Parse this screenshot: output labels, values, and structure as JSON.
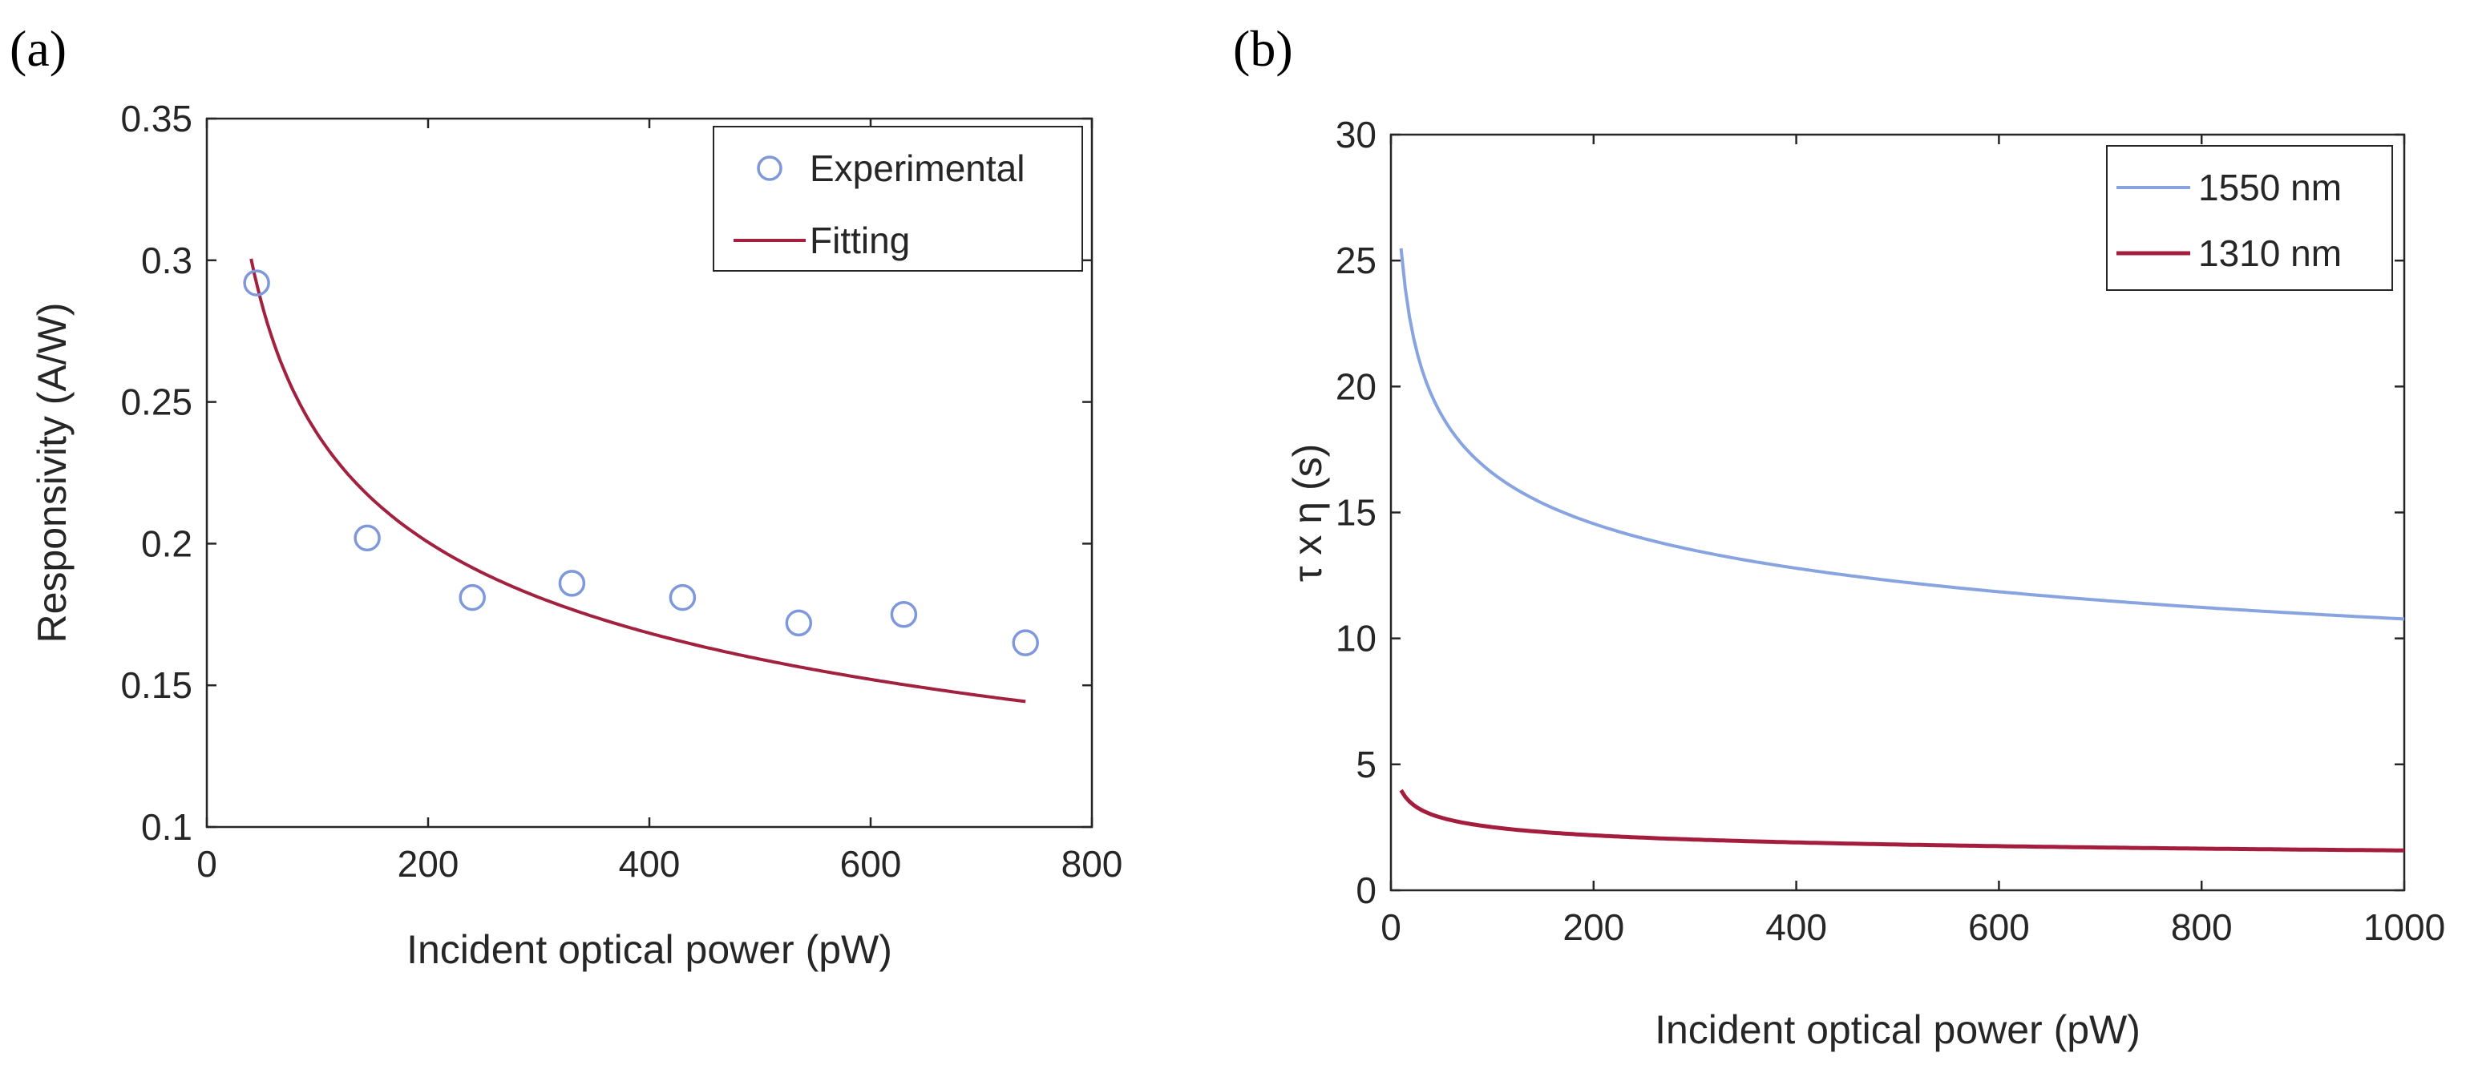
{
  "colors": {
    "experimental": "#7f98dc",
    "fitting": "#a2213f",
    "s1550": "#88a4e0",
    "s1310": "#a51d3c"
  },
  "chart_data": [
    {
      "panel_label": "(a)",
      "type": "scatter",
      "xlabel": "Incident optical power (pW)",
      "ylabel": "Responsivity (A/W)",
      "xlim": [
        0,
        800
      ],
      "ylim": [
        0.1,
        0.35
      ],
      "xticks": [
        0,
        200,
        400,
        600,
        800
      ],
      "yticks": [
        0.1,
        0.15,
        0.2,
        0.25,
        0.3,
        0.35
      ],
      "xtick_labels": [
        "0",
        "200",
        "400",
        "600",
        "800"
      ],
      "ytick_labels": [
        "0.1",
        "0.15",
        "0.2",
        "0.25",
        "0.3",
        "0.35"
      ],
      "legend_position": "top-right",
      "series": [
        {
          "name": "Experimental",
          "kind": "markers",
          "x": [
            45,
            145,
            240,
            330,
            430,
            535,
            630,
            740
          ],
          "y": [
            0.292,
            0.202,
            0.181,
            0.186,
            0.181,
            0.172,
            0.175,
            0.165
          ]
        },
        {
          "name": "Fitting",
          "kind": "line",
          "model": "a*x^b",
          "a": 0.76,
          "b": -0.2515,
          "x_range": [
            40,
            740
          ]
        }
      ]
    },
    {
      "panel_label": "(b)",
      "type": "line",
      "xlabel": "Incident optical power (pW)",
      "ylabel": "τ x η (s)",
      "xlim": [
        0,
        1000
      ],
      "ylim": [
        0,
        30
      ],
      "xticks": [
        0,
        200,
        400,
        600,
        800,
        1000
      ],
      "yticks": [
        0,
        5,
        10,
        15,
        20,
        25,
        30
      ],
      "xtick_labels": [
        "0",
        "200",
        "400",
        "600",
        "800",
        "1000"
      ],
      "ytick_labels": [
        "0",
        "5",
        "10",
        "15",
        "20",
        "25",
        "30"
      ],
      "legend_position": "top-right",
      "series": [
        {
          "name": "1550 nm",
          "kind": "line",
          "model": "a*x^b",
          "a": 39.2,
          "b": -0.187,
          "x_range": [
            10,
            1000
          ]
        },
        {
          "name": "1310 nm",
          "kind": "line",
          "model": "a*x^b",
          "a": 6.3,
          "b": -0.2,
          "x_range": [
            10,
            1000
          ]
        }
      ]
    }
  ]
}
